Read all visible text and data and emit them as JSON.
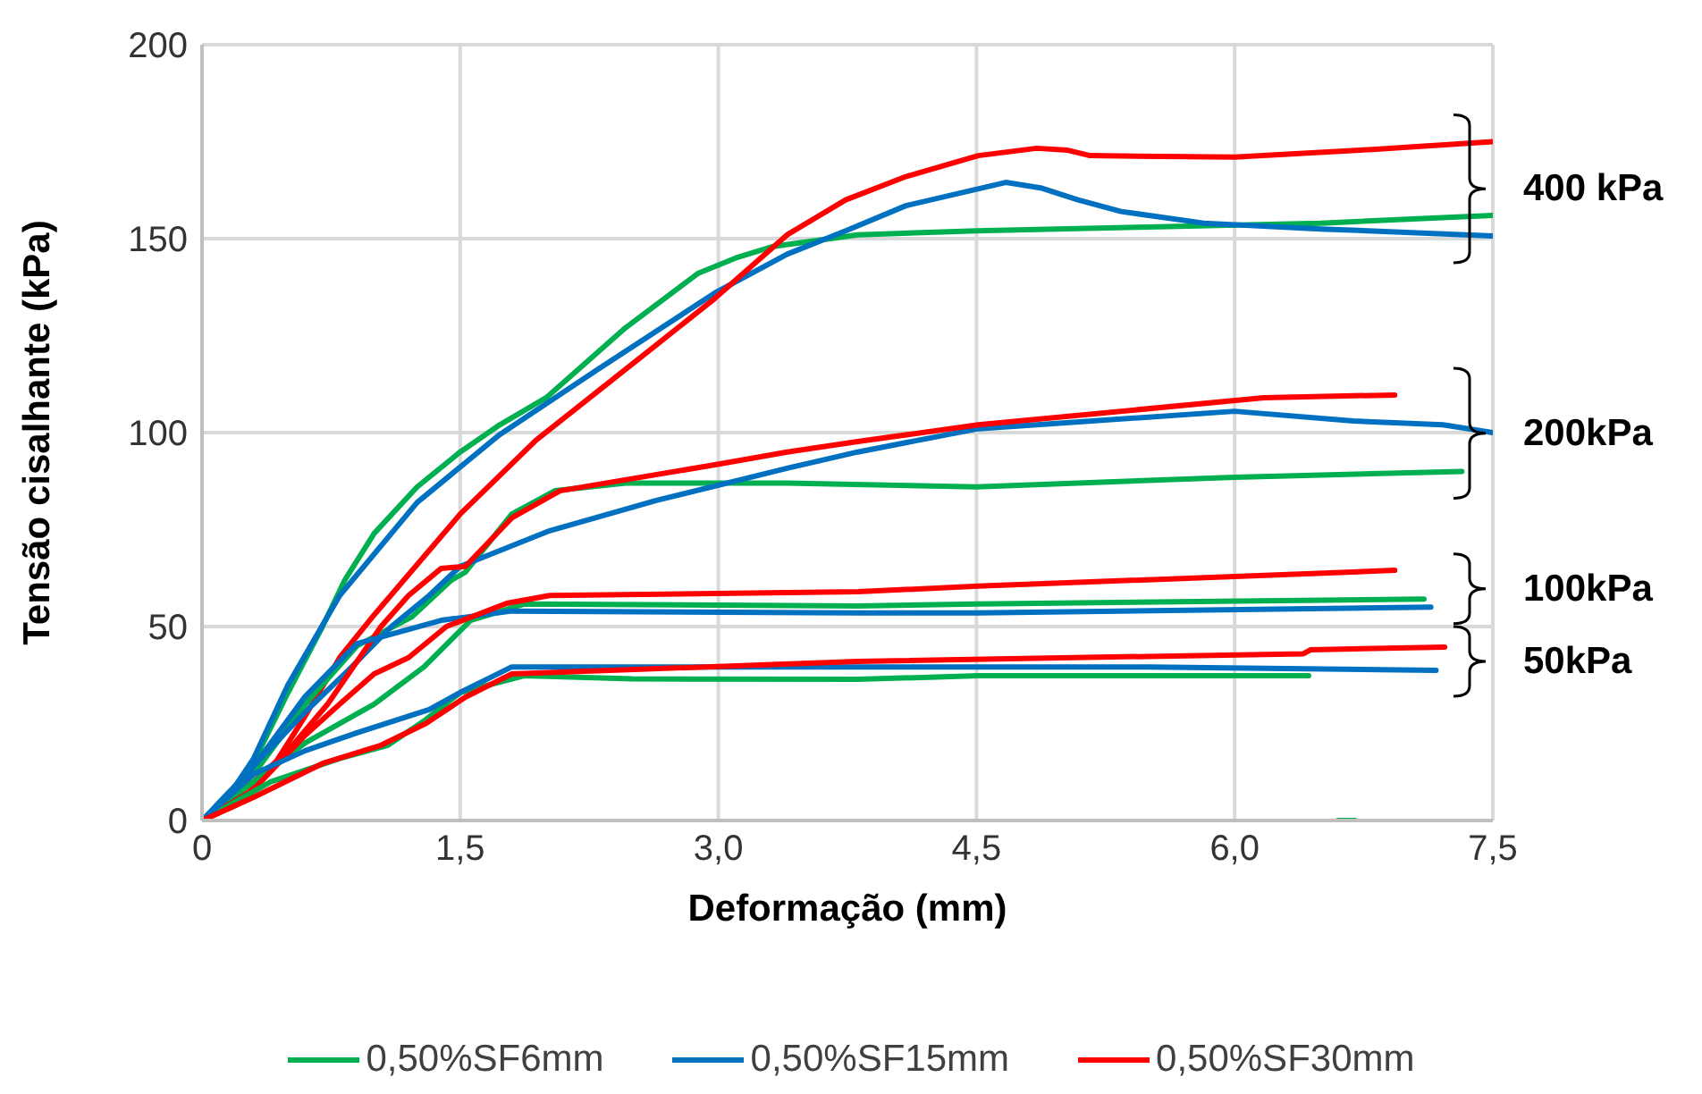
{
  "chart_data": {
    "type": "line",
    "xlabel": "Deformação (mm)",
    "ylabel": "Tensão cisalhante (kPa)",
    "xlim": [
      0,
      7.5
    ],
    "ylim": [
      0,
      200
    ],
    "xticks": [
      0,
      {
        "value": 1.5,
        "label": "1,5"
      },
      {
        "value": 3,
        "label": "3,0"
      },
      {
        "value": 4.5,
        "label": "4,5"
      },
      {
        "value": 6,
        "label": "6,0"
      },
      {
        "value": 7.5,
        "label": "7,5"
      }
    ],
    "yticks": [
      0,
      50,
      100,
      150,
      200
    ],
    "grid": true,
    "legend": "bottom",
    "marker": "none",
    "line_style": "solid",
    "series": [
      {
        "name": "0,50%SF6mm",
        "color": "#00b050",
        "x": [
          0,
          0.15,
          0.3,
          0.5,
          0.7,
          0.83,
          1.0,
          1.25,
          1.5,
          1.73,
          2.0,
          2.46,
          2.88,
          3.1,
          3.32,
          3.81,
          4.5,
          5.5,
          6.5,
          7.5
        ],
        "values": [
          0,
          5,
          15,
          33,
          50,
          62,
          74,
          86,
          95,
          102,
          109,
          127,
          141,
          145,
          148,
          151,
          152,
          153,
          154,
          156
        ]
      },
      {
        "name": "0,50%SF15mm",
        "color": "#0070c0",
        "x": [
          0,
          0.15,
          0.3,
          0.5,
          0.8,
          1.25,
          1.73,
          2.29,
          2.98,
          3.4,
          3.74,
          4.09,
          4.67,
          4.88,
          5.09,
          5.34,
          5.82,
          6.5,
          7.5
        ],
        "values": [
          0,
          6,
          16,
          35,
          58,
          82,
          99.5,
          116,
          136,
          146,
          152,
          158.5,
          164.5,
          163,
          160,
          157,
          154,
          152.5,
          150.7
        ]
      },
      {
        "name": "0,50%SF30mm",
        "color": "#ff0000",
        "x": [
          0,
          0.2,
          0.4,
          0.6,
          0.8,
          1.0,
          1.5,
          1.94,
          2.64,
          2.98,
          3.4,
          3.74,
          4.09,
          4.51,
          4.85,
          5.03,
          5.16,
          6.0,
          6.8,
          7.5
        ],
        "values": [
          0,
          4,
          13,
          27,
          42,
          53,
          79,
          98,
          122.6,
          134.6,
          151,
          160,
          166,
          171.4,
          173.3,
          172.8,
          171.4,
          171,
          173,
          175
        ]
      },
      {
        "color": "#00b050",
        "x": [
          0,
          0.3,
          0.6,
          0.9,
          1.22,
          1.45,
          1.53,
          1.8,
          2.05,
          2.46,
          3.4,
          4.5,
          6.0,
          7.32
        ],
        "values": [
          0,
          12,
          30,
          45,
          52.5,
          62,
          64,
          79,
          85,
          87,
          87,
          86,
          88.5,
          90
        ]
      },
      {
        "color": "#0070c0",
        "x": [
          0,
          0.3,
          0.6,
          0.87,
          1.1,
          1.32,
          1.5,
          2.02,
          2.64,
          3.4,
          3.81,
          4.51,
          6.0,
          6.69,
          7.21,
          7.5
        ],
        "values": [
          0,
          14,
          28,
          39.6,
          50,
          58,
          65.5,
          74.7,
          82.5,
          90.8,
          95,
          101,
          105.5,
          103,
          102,
          100
        ]
      },
      {
        "color": "#ff0000",
        "x": [
          0,
          0.3,
          0.5,
          0.73,
          1.04,
          1.2,
          1.39,
          1.53,
          1.8,
          2.08,
          2.98,
          3.4,
          3.81,
          4.51,
          6.17,
          6.93
        ],
        "values": [
          0,
          10,
          18,
          30,
          50,
          58,
          65,
          65.5,
          78,
          85,
          91.7,
          95,
          97.7,
          102,
          109,
          109.7
        ]
      },
      {
        "color": "#00b050",
        "x": [
          0,
          0.3,
          0.6,
          1.0,
          1.29,
          1.56,
          1.87,
          3.81,
          4.51,
          7.1
        ],
        "values": [
          0,
          10,
          20,
          30,
          39.6,
          51.6,
          55.8,
          55.3,
          55.8,
          57.1
        ]
      },
      {
        "color": "#0070c0",
        "x": [
          0,
          0.2,
          0.4,
          0.6,
          0.9,
          1.39,
          1.8,
          3.81,
          4.51,
          7.14
        ],
        "values": [
          0,
          8,
          20,
          32,
          45.6,
          51.6,
          54,
          53.5,
          53.5,
          55
        ]
      },
      {
        "color": "#ff0000",
        "x": [
          0,
          0.3,
          0.6,
          0.8,
          1.0,
          1.2,
          1.42,
          1.77,
          2.02,
          3.81,
          4.51,
          6.93
        ],
        "values": [
          0,
          8,
          22,
          30,
          37.8,
          42,
          50,
          56,
          58,
          59,
          60.4,
          64.5
        ]
      },
      {
        "color": "#00b050",
        "x": [
          0,
          0.4,
          0.8,
          1.08,
          1.3,
          1.5,
          1.87,
          2.5,
          3.81,
          4.51,
          6.43
        ],
        "values": [
          0,
          10,
          16,
          19.4,
          26,
          33,
          37.3,
          36.5,
          36.4,
          37.3,
          37.3
        ]
      },
      {
        "color": "#0070c0",
        "x": [
          0,
          0.3,
          0.6,
          0.9,
          1.32,
          1.5,
          1.8,
          3.81,
          5.5,
          7.17
        ],
        "values": [
          0,
          12,
          18,
          22.6,
          28.6,
          33,
          39.6,
          39.6,
          39.6,
          38.7
        ]
      },
      {
        "color": "#ff0000",
        "x": [
          0,
          0.3,
          0.7,
          1.04,
          1.3,
          1.53,
          1.8,
          3.81,
          6.4,
          6.44,
          7.22
        ],
        "values": [
          0,
          6,
          14.7,
          19.4,
          25,
          31.8,
          37.8,
          41,
          43,
          44,
          44.7
        ]
      },
      {
        "color": "#00b050",
        "x": [
          6.6,
          6.7
        ],
        "values": [
          0,
          0
        ]
      }
    ],
    "annotations": [
      "400 kPa",
      "200kPa",
      "100kPa",
      "50kPa"
    ]
  }
}
